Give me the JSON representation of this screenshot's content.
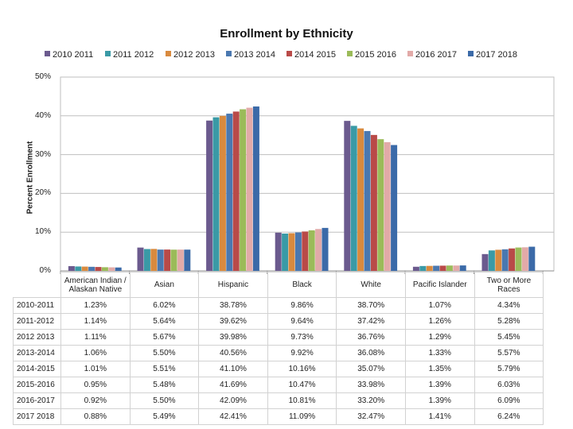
{
  "chart_data": {
    "type": "bar",
    "title": "Enrollment by Ethnicity",
    "xlabel": "",
    "ylabel": "Percent Enrollment",
    "ylim": [
      0,
      50
    ],
    "yticks": [
      "0%",
      "10%",
      "20%",
      "30%",
      "40%",
      "50%"
    ],
    "grid": true,
    "legend_position": "top",
    "categories": [
      "American Indian / Alaskan Native",
      "Asian",
      "Hispanic",
      "Black",
      "White",
      "Pacific Islander",
      "Two or More Races"
    ],
    "series": [
      {
        "name": "2010 2011",
        "color": "#6b5a8e",
        "values": [
          1.23,
          6.02,
          38.78,
          9.86,
          38.7,
          1.07,
          4.34
        ]
      },
      {
        "name": "2011 2012",
        "color": "#3a9aa6",
        "values": [
          1.14,
          5.64,
          39.62,
          9.64,
          37.42,
          1.26,
          5.28
        ]
      },
      {
        "name": "2012 2013",
        "color": "#d98a3e",
        "values": [
          1.11,
          5.67,
          39.98,
          9.73,
          36.76,
          1.29,
          5.45
        ]
      },
      {
        "name": "2013 2014",
        "color": "#4a78b0",
        "values": [
          1.06,
          5.5,
          40.56,
          9.92,
          36.08,
          1.33,
          5.57
        ]
      },
      {
        "name": "2014 2015",
        "color": "#b94a48",
        "values": [
          1.01,
          5.51,
          41.1,
          10.16,
          35.07,
          1.35,
          5.79
        ]
      },
      {
        "name": "2015 2016",
        "color": "#9bbb59",
        "values": [
          0.95,
          5.48,
          41.69,
          10.47,
          33.98,
          1.39,
          6.03
        ]
      },
      {
        "name": "2016 2017",
        "color": "#e2aaa8",
        "values": [
          0.92,
          5.5,
          42.09,
          10.81,
          33.2,
          1.39,
          6.09
        ]
      },
      {
        "name": "2017 2018",
        "color": "#3b6aa8",
        "values": [
          0.88,
          5.49,
          42.41,
          11.09,
          32.47,
          1.41,
          6.24
        ]
      }
    ],
    "table": {
      "column_headers": [
        "American Indian / Alaskan Native",
        "Asian",
        "Hispanic",
        "Black",
        "White",
        "Pacific Islander",
        "Two or More Races"
      ],
      "rows": [
        {
          "label": "2010-2011",
          "cells": [
            "1.23%",
            "6.02%",
            "38.78%",
            "9.86%",
            "38.70%",
            "1.07%",
            "4.34%"
          ]
        },
        {
          "label": "2011-2012",
          "cells": [
            "1.14%",
            "5.64%",
            "39.62%",
            "9.64%",
            "37.42%",
            "1.26%",
            "5.28%"
          ]
        },
        {
          "label": "2012 2013",
          "cells": [
            "1.11%",
            "5.67%",
            "39.98%",
            "9.73%",
            "36.76%",
            "1.29%",
            "5.45%"
          ]
        },
        {
          "label": "2013-2014",
          "cells": [
            "1.06%",
            "5.50%",
            "40.56%",
            "9.92%",
            "36.08%",
            "1.33%",
            "5.57%"
          ]
        },
        {
          "label": "2014-2015",
          "cells": [
            "1.01%",
            "5.51%",
            "41.10%",
            "10.16%",
            "35.07%",
            "1.35%",
            "5.79%"
          ]
        },
        {
          "label": "2015-2016",
          "cells": [
            "0.95%",
            "5.48%",
            "41.69%",
            "10.47%",
            "33.98%",
            "1.39%",
            "6.03%"
          ]
        },
        {
          "label": "2016-2017",
          "cells": [
            "0.92%",
            "5.50%",
            "42.09%",
            "10.81%",
            "33.20%",
            "1.39%",
            "6.09%"
          ]
        },
        {
          "label": "2017 2018",
          "cells": [
            "0.88%",
            "5.49%",
            "42.41%",
            "11.09%",
            "32.47%",
            "1.41%",
            "6.24%"
          ]
        }
      ]
    }
  }
}
